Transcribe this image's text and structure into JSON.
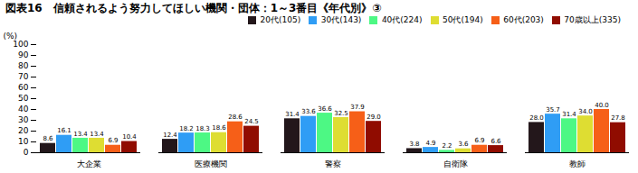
{
  "chart_data": {
    "type": "bar",
    "title": "図表16　信頼されるよう努力してほしい機関・団体：1～3番目《年代別》③",
    "ylabel": "(%)",
    "categories": [
      "大企業",
      "医療機関",
      "警察",
      "自衛隊",
      "教師"
    ],
    "series": [
      {
        "name": "20代(105)",
        "values": [
          8.6,
          12.4,
          31.4,
          3.8,
          28.0
        ],
        "value_labels": [
          "8.6",
          "12.4",
          "31.4",
          "3.8",
          "28.0"
        ]
      },
      {
        "name": "30代(143)",
        "values": [
          16.1,
          18.2,
          33.6,
          4.9,
          35.7
        ],
        "value_labels": [
          "16.1",
          "18.2",
          "33.6",
          "4.9",
          "35.7"
        ]
      },
      {
        "name": "40代(224)",
        "values": [
          13.4,
          18.3,
          36.6,
          2.2,
          31.4
        ],
        "value_labels": [
          "13.4",
          "18.3",
          "36.6",
          "2.2",
          "31.4"
        ]
      },
      {
        "name": "50代(194)",
        "values": [
          13.4,
          18.6,
          32.5,
          3.6,
          34.0
        ],
        "value_labels": [
          "13.4",
          "18.6",
          "32.5",
          "3.6",
          "34.0"
        ]
      },
      {
        "name": "60代(203)",
        "values": [
          6.9,
          28.6,
          37.9,
          6.9,
          40.0
        ],
        "value_labels": [
          "6.9",
          "28.6",
          "37.9",
          "6.9",
          "40.0"
        ]
      },
      {
        "name": "70歳以上(335)",
        "values": [
          10.4,
          24.5,
          29.0,
          6.6,
          27.8
        ],
        "value_labels": [
          "10.4",
          "24.5",
          "29.0",
          "6.6",
          "27.8"
        ]
      }
    ],
    "ylim": [
      0,
      100
    ],
    "yticks": [
      0,
      10,
      20,
      30,
      40,
      50,
      60,
      70,
      80,
      90,
      100
    ],
    "grid": false,
    "legend": "upper right",
    "data_labels": true
  }
}
